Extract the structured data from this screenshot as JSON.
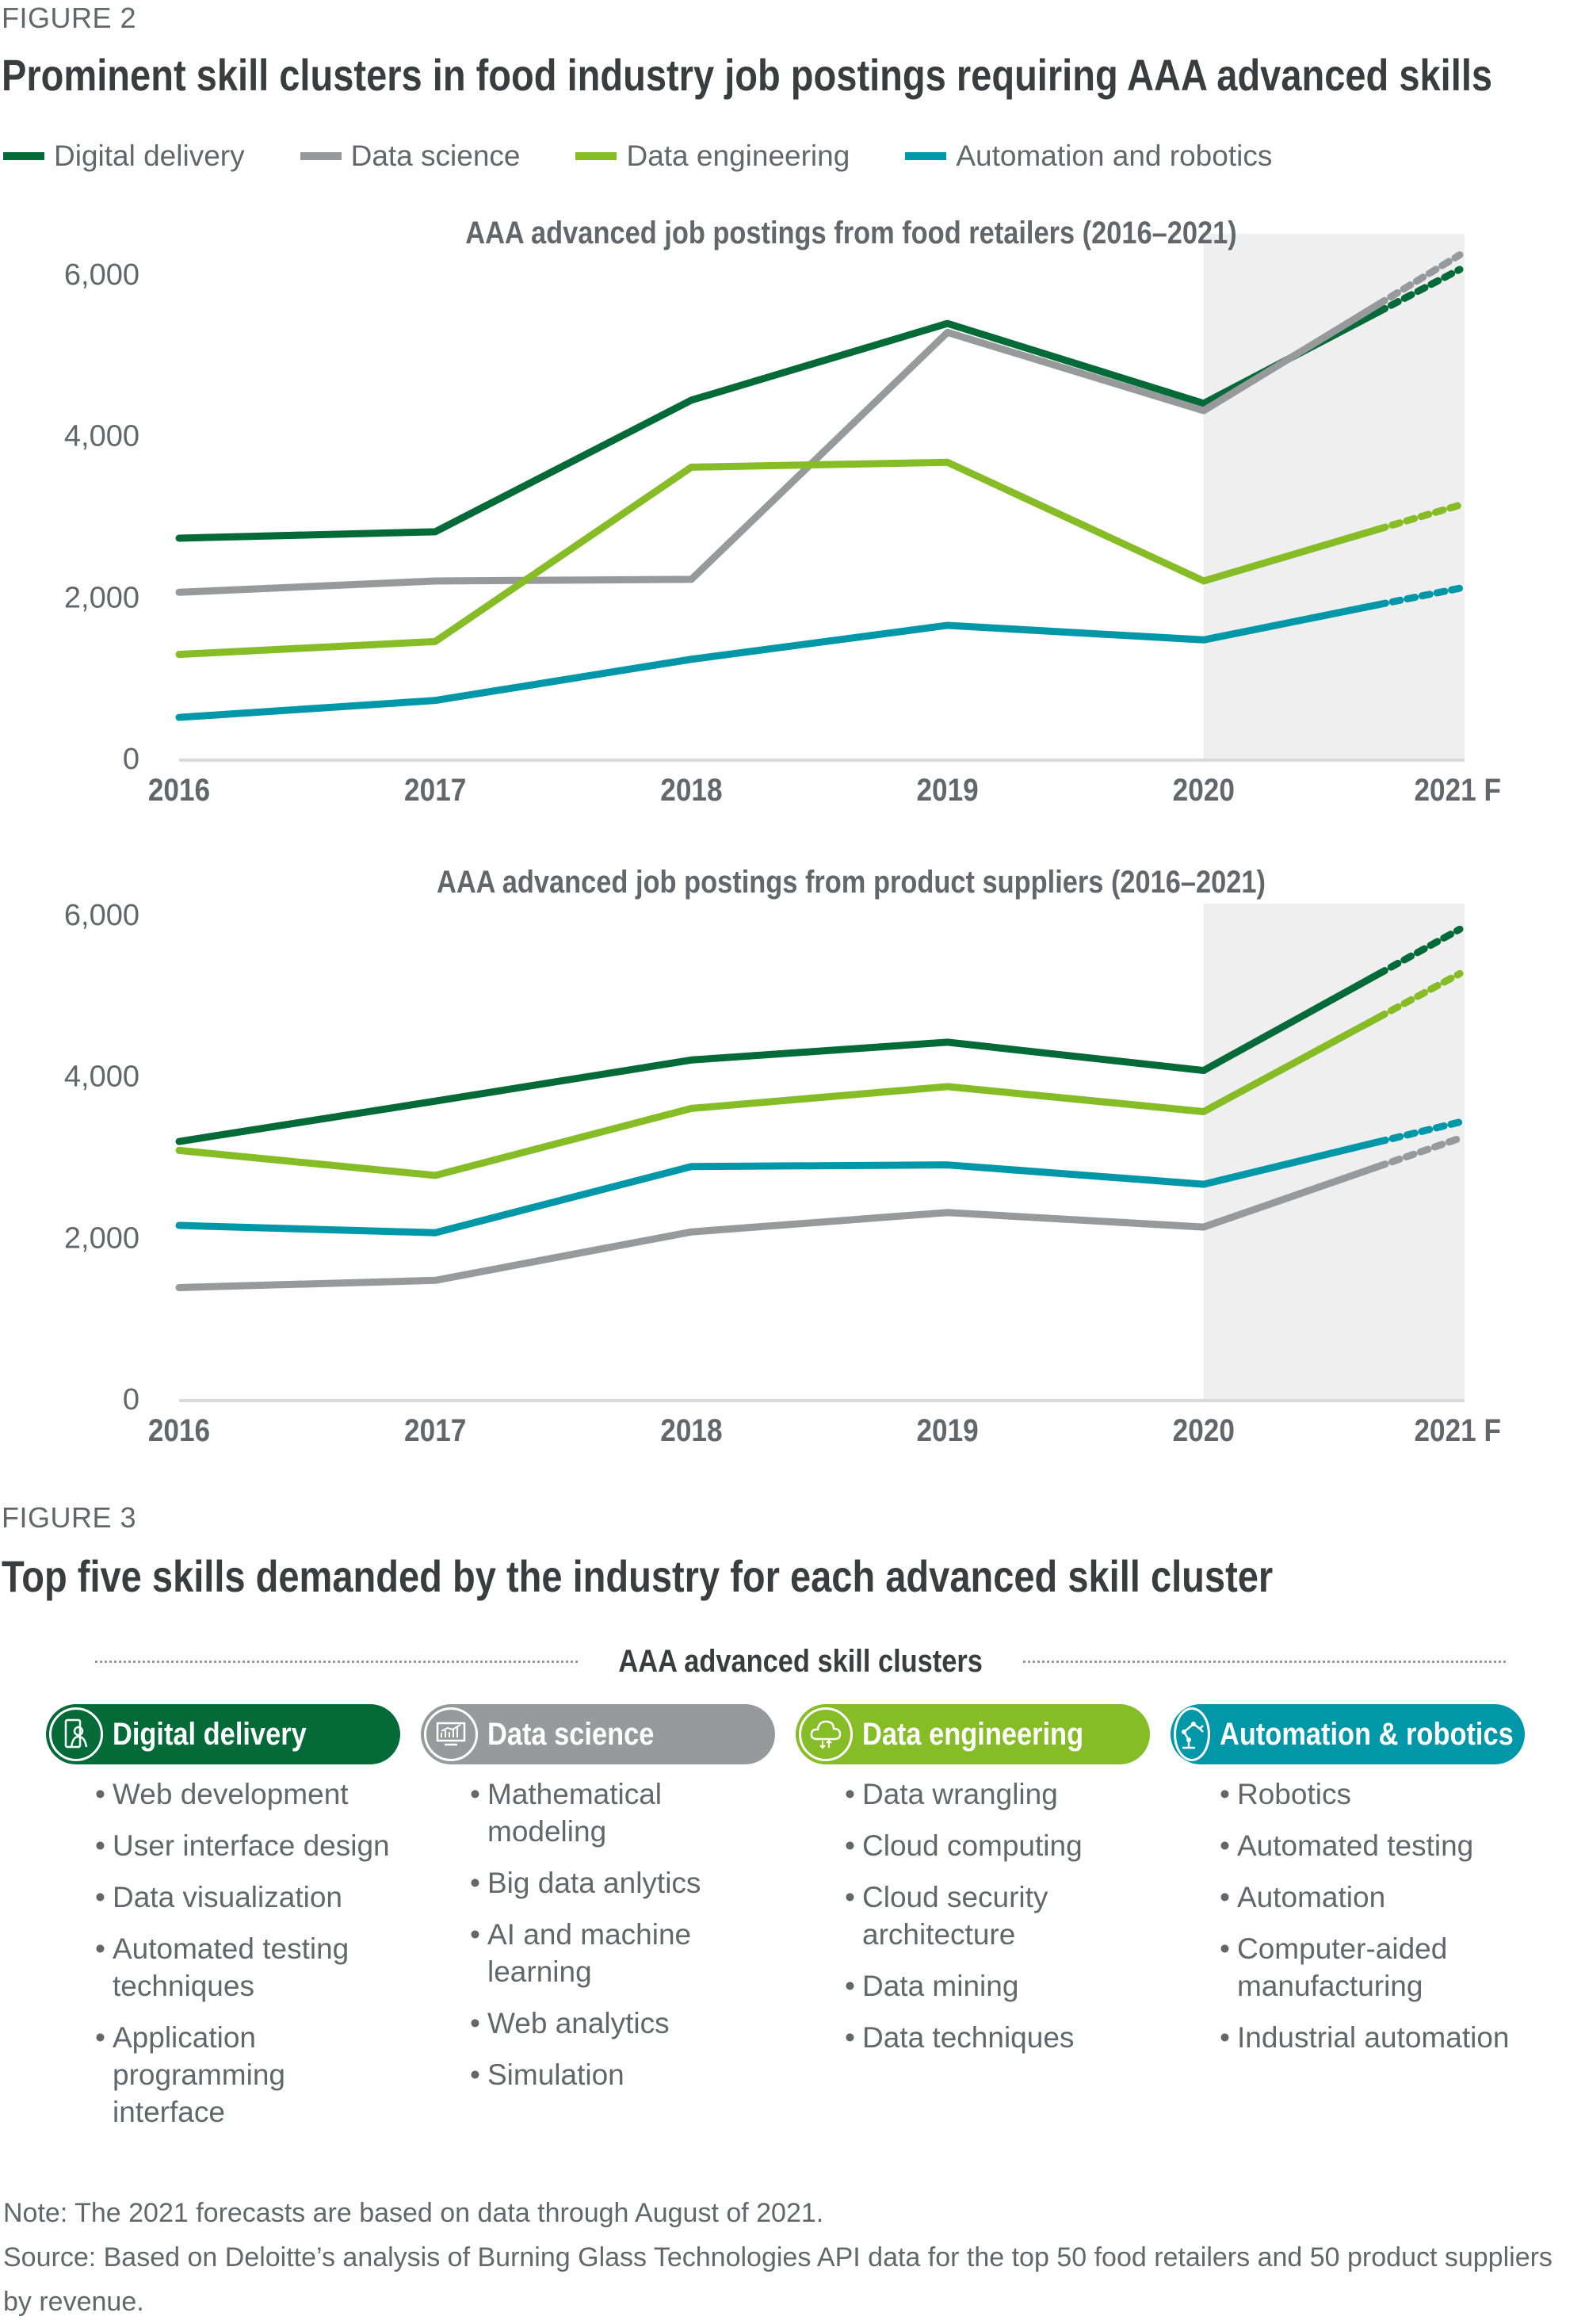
{
  "figure2": {
    "label": "FIGURE 2",
    "title": "Prominent skill clusters in food industry job postings requiring AAA advanced skills",
    "legend": [
      {
        "name": "Digital delivery",
        "color": "#046a38"
      },
      {
        "name": "Data science",
        "color": "#97999b"
      },
      {
        "name": "Data engineering",
        "color": "#86bc25"
      },
      {
        "name": "Automation and robotics",
        "color": "#0097a9"
      }
    ]
  },
  "chart_data": [
    {
      "type": "line",
      "title": "AAA advanced job postings from food retailers (2016–2021)",
      "categories": [
        "2016",
        "2017",
        "2018",
        "2019",
        "2020",
        "2021 F"
      ],
      "yticks": [
        "0",
        "2,000",
        "4,000",
        "6,000"
      ],
      "ylim": [
        0,
        6000
      ],
      "forecast_shaded_from": "2020",
      "series": [
        {
          "name": "Digital delivery",
          "color": "#046a38",
          "values": [
            2730,
            2810,
            4440,
            5390,
            4400,
            6060
          ]
        },
        {
          "name": "Data science",
          "color": "#97999b",
          "values": [
            2060,
            2200,
            2220,
            5280,
            4310,
            6240
          ]
        },
        {
          "name": "Data engineering",
          "color": "#86bc25",
          "values": [
            1290,
            1450,
            3610,
            3670,
            2200,
            3140
          ]
        },
        {
          "name": "Automation and robotics",
          "color": "#0097a9",
          "values": [
            510,
            720,
            1230,
            1650,
            1470,
            2110
          ]
        }
      ]
    },
    {
      "type": "line",
      "title": "AAA advanced job postings from product suppliers (2016–2021)",
      "categories": [
        "2016",
        "2017",
        "2018",
        "2019",
        "2020",
        "2021 F"
      ],
      "yticks": [
        "0",
        "2,000",
        "4,000",
        "6,000"
      ],
      "ylim": [
        0,
        6000
      ],
      "forecast_shaded_from": "2020",
      "series": [
        {
          "name": "Digital delivery",
          "color": "#046a38",
          "values": [
            3190,
            3690,
            4200,
            4420,
            4070,
            5820
          ]
        },
        {
          "name": "Data engineering",
          "color": "#86bc25",
          "values": [
            3080,
            2770,
            3600,
            3870,
            3560,
            5270
          ]
        },
        {
          "name": "Automation and robotics",
          "color": "#0097a9",
          "values": [
            2150,
            2060,
            2880,
            2900,
            2660,
            3430
          ]
        },
        {
          "name": "Data science",
          "color": "#97999b",
          "values": [
            1380,
            1470,
            2070,
            2310,
            2130,
            3230
          ]
        }
      ]
    }
  ],
  "figure3": {
    "label": "FIGURE 3",
    "title": "Top five skills demanded by the industry for each advanced skill cluster",
    "header": "AAA advanced skill clusters",
    "clusters": [
      {
        "name": "Digital delivery",
        "color": "#046a38",
        "icon": "mobile-user-icon",
        "skills": [
          "Web development",
          "User interface design",
          "Data visualization",
          "Automated testing techniques",
          "Application programming interface"
        ]
      },
      {
        "name": "Data science",
        "color": "#97999b",
        "icon": "chart-monitor-icon",
        "skills": [
          "Mathematical modeling",
          "Big data anlytics",
          "AI and machine learning",
          "Web analytics",
          "Simulation"
        ]
      },
      {
        "name": "Data engineering",
        "color": "#86bc25",
        "icon": "cloud-icon",
        "skills": [
          "Data wrangling",
          "Cloud computing",
          "Cloud security architecture",
          "Data mining",
          "Data techniques"
        ]
      },
      {
        "name": "Automation & robotics",
        "color": "#0097a9",
        "icon": "robot-arm-icon",
        "skills": [
          "Robotics",
          "Automated testing",
          "Automation",
          "Computer-aided manufacturing",
          "Industrial automation"
        ]
      }
    ]
  },
  "footer": {
    "note": "Note: The 2021 forecasts are based on data through August of 2021.",
    "source": "Source: Based on Deloitte’s analysis of Burning Glass Technologies API data for the top 50 food retailers and 50 product suppliers by revenue."
  }
}
